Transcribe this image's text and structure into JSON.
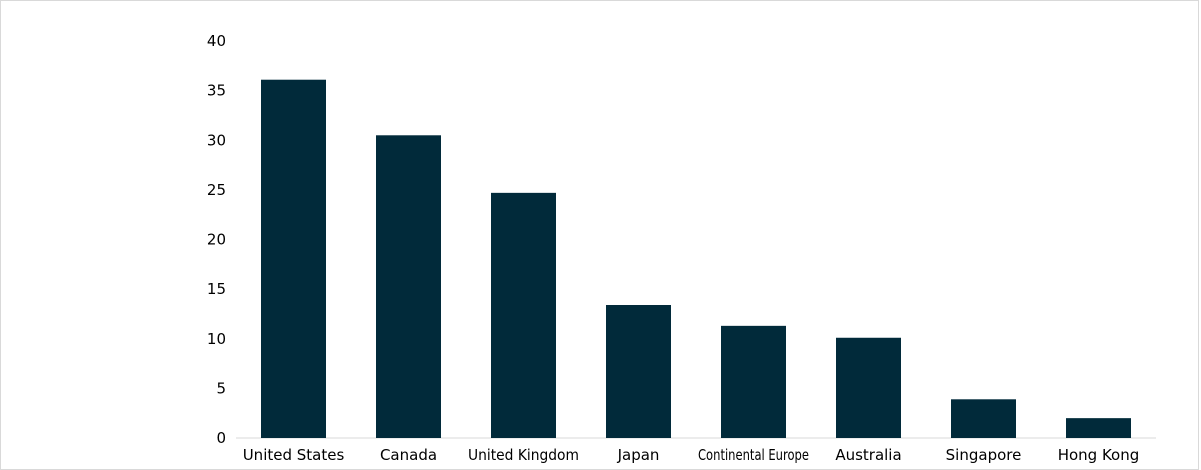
{
  "chart_data": {
    "type": "bar",
    "categories": [
      "United States",
      "Canada",
      "United Kingdom",
      "Japan",
      "Continental Europe",
      "Australia",
      "Singapore",
      "Hong Kong"
    ],
    "values": [
      36.1,
      30.5,
      24.7,
      13.4,
      11.3,
      10.1,
      3.9,
      2.0
    ],
    "yticks": [
      "0",
      "5",
      "10",
      "15",
      "20",
      "25",
      "30",
      "35",
      "40"
    ],
    "ylim": [
      0,
      40
    ],
    "grid": false,
    "legend": "none",
    "bar_color": "#012a3a",
    "axis_color": "#d9d9d9"
  }
}
